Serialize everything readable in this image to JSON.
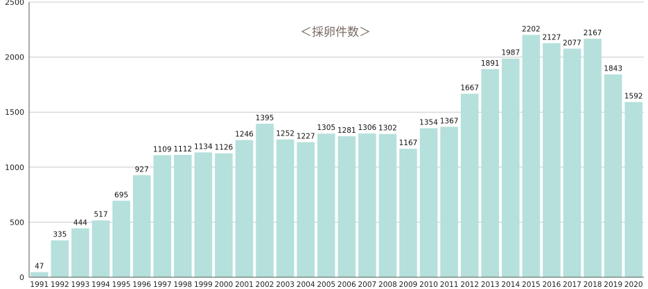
{
  "chart_data": {
    "type": "bar",
    "title": "＜採卵件数＞",
    "xlabel": "",
    "ylabel": "",
    "ylim": [
      0,
      2500
    ],
    "yticks": [
      0,
      500,
      1000,
      1500,
      2000,
      2500
    ],
    "grid": true,
    "show_value_labels": true,
    "colors": {
      "bar": "#b5e0dc",
      "grid": "#c8c8c8",
      "axis": "#555555"
    },
    "categories": [
      "1991",
      "1992",
      "1993",
      "1994",
      "1995",
      "1996",
      "1997",
      "1998",
      "1999",
      "2000",
      "2001",
      "2002",
      "2003",
      "2004",
      "2005",
      "2006",
      "2007",
      "2008",
      "2009",
      "2010",
      "2011",
      "2012",
      "2013",
      "2014",
      "2015",
      "2016",
      "2017",
      "2018",
      "2019",
      "2020"
    ],
    "values": [
      47,
      335,
      444,
      517,
      695,
      927,
      1109,
      1112,
      1134,
      1126,
      1246,
      1395,
      1252,
      1227,
      1305,
      1281,
      1306,
      1302,
      1167,
      1354,
      1367,
      1667,
      1891,
      1987,
      2202,
      2127,
      2077,
      2167,
      1843,
      1592
    ]
  }
}
